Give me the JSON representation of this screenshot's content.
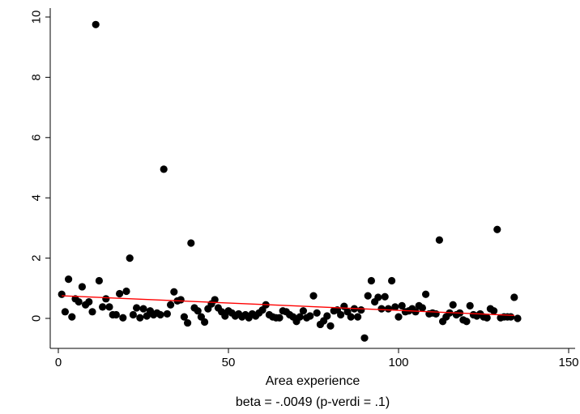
{
  "chart_data": {
    "type": "scatter",
    "xlabel": "Area experience",
    "note": "beta = -.0049 (p-verdi = .1)",
    "xlim": [
      0,
      150
    ],
    "ylim": [
      -1,
      10
    ],
    "x_ticks": [
      0,
      50,
      100,
      150
    ],
    "y_ticks": [
      0,
      2,
      4,
      6,
      8,
      10
    ],
    "x_tick_labels": [
      "0",
      "50",
      "100",
      "150"
    ],
    "y_tick_labels": [
      "0",
      "2",
      "4",
      "6",
      "8",
      "10"
    ],
    "grid": false,
    "point_color": "#000000",
    "fit_line": {
      "x": [
        1,
        134
      ],
      "y": [
        0.75,
        0.1
      ],
      "color": "#ff0000"
    },
    "points": [
      [
        1,
        0.8
      ],
      [
        2,
        0.22
      ],
      [
        3,
        1.3
      ],
      [
        4,
        0.05
      ],
      [
        5,
        0.65
      ],
      [
        6,
        0.55
      ],
      [
        7,
        1.05
      ],
      [
        8,
        0.45
      ],
      [
        9,
        0.55
      ],
      [
        10,
        0.22
      ],
      [
        11,
        9.75
      ],
      [
        12,
        1.25
      ],
      [
        13,
        0.38
      ],
      [
        14,
        0.65
      ],
      [
        15,
        0.38
      ],
      [
        16,
        0.12
      ],
      [
        17,
        0.12
      ],
      [
        18,
        0.82
      ],
      [
        19,
        0.02
      ],
      [
        20,
        0.9
      ],
      [
        21,
        2.0
      ],
      [
        22,
        0.12
      ],
      [
        23,
        0.35
      ],
      [
        24,
        0.02
      ],
      [
        25,
        0.32
      ],
      [
        26,
        0.08
      ],
      [
        27,
        0.25
      ],
      [
        28,
        0.12
      ],
      [
        29,
        0.18
      ],
      [
        30,
        0.12
      ],
      [
        31,
        4.95
      ],
      [
        32,
        0.15
      ],
      [
        33,
        0.45
      ],
      [
        34,
        0.88
      ],
      [
        35,
        0.58
      ],
      [
        36,
        0.62
      ],
      [
        37,
        0.05
      ],
      [
        38,
        -0.15
      ],
      [
        39,
        2.5
      ],
      [
        40,
        0.35
      ],
      [
        41,
        0.25
      ],
      [
        42,
        0.05
      ],
      [
        43,
        -0.12
      ],
      [
        44,
        0.32
      ],
      [
        45,
        0.48
      ],
      [
        46,
        0.62
      ],
      [
        47,
        0.35
      ],
      [
        48,
        0.22
      ],
      [
        49,
        0.08
      ],
      [
        50,
        0.25
      ],
      [
        51,
        0.18
      ],
      [
        52,
        0.08
      ],
      [
        53,
        0.15
      ],
      [
        54,
        0.05
      ],
      [
        55,
        0.12
      ],
      [
        56,
        0.02
      ],
      [
        57,
        0.15
      ],
      [
        58,
        0.08
      ],
      [
        59,
        0.18
      ],
      [
        60,
        0.28
      ],
      [
        61,
        0.45
      ],
      [
        62,
        0.12
      ],
      [
        63,
        0.05
      ],
      [
        64,
        0.02
      ],
      [
        65,
        0.02
      ],
      [
        66,
        0.25
      ],
      [
        67,
        0.22
      ],
      [
        68,
        0.12
      ],
      [
        69,
        0.05
      ],
      [
        70,
        -0.1
      ],
      [
        71,
        0.05
      ],
      [
        72,
        0.25
      ],
      [
        73,
        0.02
      ],
      [
        74,
        0.08
      ],
      [
        75,
        0.75
      ],
      [
        76,
        0.18
      ],
      [
        77,
        -0.2
      ],
      [
        78,
        -0.08
      ],
      [
        79,
        0.08
      ],
      [
        80,
        -0.25
      ],
      [
        81,
        0.25
      ],
      [
        82,
        0.28
      ],
      [
        83,
        0.12
      ],
      [
        84,
        0.4
      ],
      [
        85,
        0.22
      ],
      [
        86,
        0.05
      ],
      [
        87,
        0.32
      ],
      [
        88,
        0.05
      ],
      [
        89,
        0.28
      ],
      [
        90,
        -0.65
      ],
      [
        91,
        0.75
      ],
      [
        92,
        1.25
      ],
      [
        93,
        0.55
      ],
      [
        94,
        0.7
      ],
      [
        95,
        0.32
      ],
      [
        96,
        0.72
      ],
      [
        97,
        0.32
      ],
      [
        98,
        1.25
      ],
      [
        99,
        0.38
      ],
      [
        100,
        0.05
      ],
      [
        101,
        0.42
      ],
      [
        102,
        0.22
      ],
      [
        103,
        0.25
      ],
      [
        104,
        0.32
      ],
      [
        105,
        0.22
      ],
      [
        106,
        0.42
      ],
      [
        107,
        0.35
      ],
      [
        108,
        0.8
      ],
      [
        109,
        0.15
      ],
      [
        110,
        0.18
      ],
      [
        111,
        0.15
      ],
      [
        112,
        2.6
      ],
      [
        113,
        -0.1
      ],
      [
        114,
        0.05
      ],
      [
        115,
        0.18
      ],
      [
        116,
        0.45
      ],
      [
        117,
        0.12
      ],
      [
        118,
        0.18
      ],
      [
        119,
        -0.05
      ],
      [
        120,
        -0.1
      ],
      [
        121,
        0.42
      ],
      [
        122,
        0.12
      ],
      [
        123,
        0.08
      ],
      [
        124,
        0.15
      ],
      [
        125,
        0.05
      ],
      [
        126,
        0.02
      ],
      [
        127,
        0.32
      ],
      [
        128,
        0.25
      ],
      [
        129,
        2.95
      ],
      [
        130,
        0.02
      ],
      [
        131,
        0.05
      ],
      [
        132,
        0.05
      ],
      [
        133,
        0.05
      ],
      [
        134,
        0.7
      ],
      [
        135,
        0.0
      ]
    ]
  }
}
